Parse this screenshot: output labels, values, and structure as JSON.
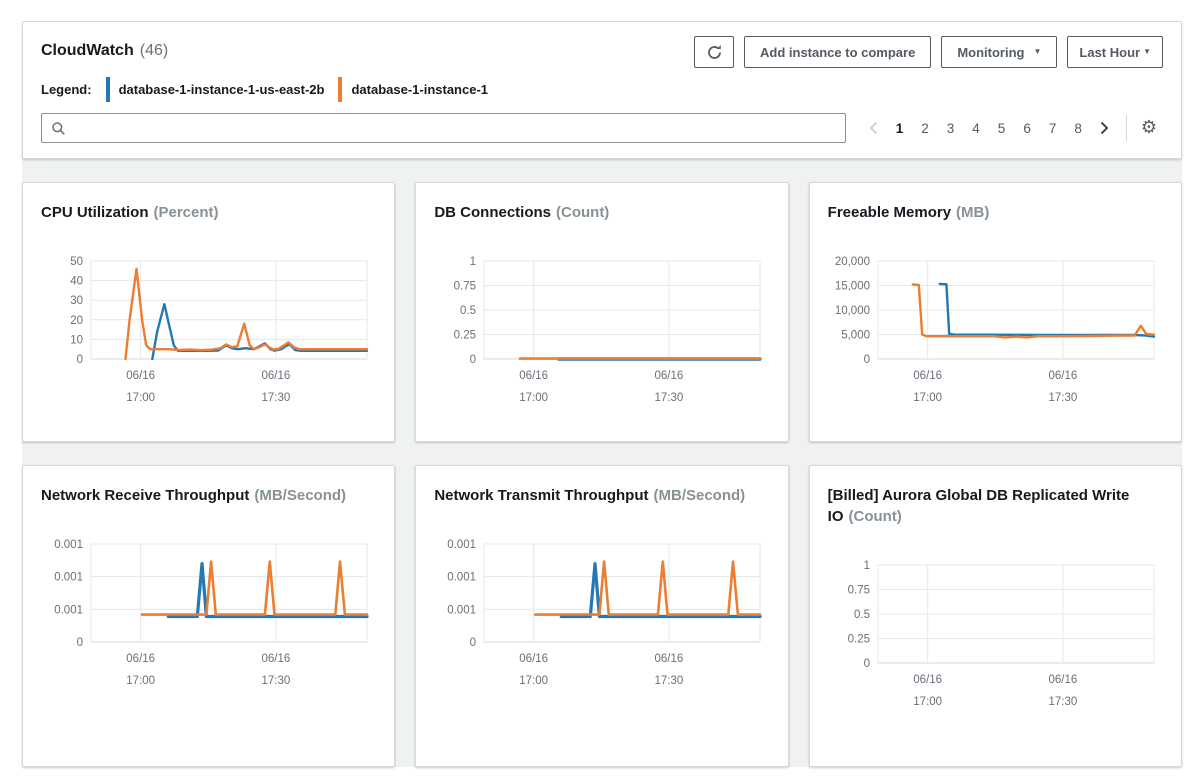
{
  "colors": {
    "blue": "#2478b4",
    "orange": "#ec7d31"
  },
  "header": {
    "title": "CloudWatch",
    "count": "(46)",
    "legend_label": "Legend:",
    "legend_items": [
      {
        "name": "database-1-instance-1-us-east-2b",
        "color_key": "blue"
      },
      {
        "name": "database-1-instance-1",
        "color_key": "orange"
      }
    ],
    "actions": {
      "add_instance": "Add instance to compare",
      "monitoring": "Monitoring",
      "time_range": "Last Hour"
    },
    "search": {
      "value": "",
      "placeholder": ""
    },
    "pagination": {
      "pages": [
        "1",
        "2",
        "3",
        "4",
        "5",
        "6",
        "7",
        "8"
      ],
      "active_page": "1"
    }
  },
  "chart_data": [
    {
      "type": "line",
      "title": "CPU Utilization",
      "unit": "(Percent)",
      "ylabel": "Percent",
      "ylim": [
        0,
        50
      ],
      "grid": true,
      "yticks": [
        {
          "v": 0,
          "label": "0"
        },
        {
          "v": 10,
          "label": "10"
        },
        {
          "v": 20,
          "label": "20"
        },
        {
          "v": 30,
          "label": "30"
        },
        {
          "v": 40,
          "label": "40"
        },
        {
          "v": 50,
          "label": "50"
        }
      ],
      "xticks": [
        {
          "pos": 0.18,
          "lines": [
            "06/16",
            "17:00"
          ]
        },
        {
          "pos": 0.67,
          "lines": [
            "06/16",
            "17:30"
          ]
        }
      ],
      "series": [
        {
          "name": "database-1-instance-1-us-east-2b",
          "color_key": "blue",
          "width": 2.4,
          "points": [
            [
              0.222,
              0
            ],
            [
              0.24,
              14
            ],
            [
              0.266,
              28
            ],
            [
              0.285,
              16
            ],
            [
              0.3,
              7
            ],
            [
              0.315,
              4.2
            ],
            [
              0.36,
              4.2
            ],
            [
              0.42,
              4.2
            ],
            [
              0.46,
              4.3
            ],
            [
              0.49,
              7
            ],
            [
              0.51,
              5.5
            ],
            [
              0.53,
              5
            ],
            [
              0.56,
              5.5
            ],
            [
              0.59,
              5
            ],
            [
              0.61,
              6.5
            ],
            [
              0.63,
              8
            ],
            [
              0.65,
              5
            ],
            [
              0.665,
              4.3
            ],
            [
              0.69,
              5
            ],
            [
              0.705,
              6.5
            ],
            [
              0.72,
              7.5
            ],
            [
              0.74,
              4.6
            ],
            [
              0.76,
              4.2
            ],
            [
              0.82,
              4.2
            ],
            [
              0.9,
              4.2
            ],
            [
              1,
              4.2
            ]
          ]
        },
        {
          "name": "database-1-instance-1",
          "color_key": "orange",
          "width": 2.4,
          "points": [
            [
              0.125,
              0
            ],
            [
              0.14,
              20
            ],
            [
              0.165,
              46
            ],
            [
              0.185,
              20
            ],
            [
              0.2,
              7
            ],
            [
              0.215,
              5
            ],
            [
              0.28,
              5
            ],
            [
              0.32,
              4.6
            ],
            [
              0.36,
              4.8
            ],
            [
              0.4,
              4.5
            ],
            [
              0.44,
              4.8
            ],
            [
              0.47,
              5.5
            ],
            [
              0.49,
              7.5
            ],
            [
              0.51,
              6
            ],
            [
              0.53,
              6.5
            ],
            [
              0.555,
              18
            ],
            [
              0.575,
              7
            ],
            [
              0.59,
              5
            ],
            [
              0.61,
              6
            ],
            [
              0.63,
              7.5
            ],
            [
              0.645,
              6
            ],
            [
              0.66,
              4.8
            ],
            [
              0.68,
              5.2
            ],
            [
              0.7,
              7
            ],
            [
              0.715,
              8.5
            ],
            [
              0.735,
              6
            ],
            [
              0.755,
              5
            ],
            [
              0.8,
              5
            ],
            [
              0.88,
              5
            ],
            [
              1,
              5
            ]
          ]
        }
      ]
    },
    {
      "type": "line",
      "title": "DB Connections",
      "unit": "(Count)",
      "ylabel": "Count",
      "ylim": [
        0,
        1
      ],
      "grid": true,
      "yticks": [
        {
          "v": 0,
          "label": "0"
        },
        {
          "v": 0.25,
          "label": "0.25"
        },
        {
          "v": 0.5,
          "label": "0.5"
        },
        {
          "v": 0.75,
          "label": "0.75"
        },
        {
          "v": 1,
          "label": "1"
        }
      ],
      "xticks": [
        {
          "pos": 0.18,
          "lines": [
            "06/16",
            "17:00"
          ]
        },
        {
          "pos": 0.67,
          "lines": [
            "06/16",
            "17:30"
          ]
        }
      ],
      "series": [
        {
          "name": "database-1-instance-1-us-east-2b",
          "color_key": "blue",
          "width": 3.4,
          "points": [
            [
              0.27,
              0
            ],
            [
              1,
              0
            ]
          ]
        },
        {
          "name": "database-1-instance-1",
          "color_key": "orange",
          "width": 2.6,
          "points": [
            [
              0.13,
              0.004
            ],
            [
              1,
              0.004
            ]
          ]
        }
      ]
    },
    {
      "type": "line",
      "title": "Freeable Memory",
      "unit": "(MB)",
      "ylabel": "MB",
      "ylim": [
        0,
        20000
      ],
      "grid": true,
      "yticks": [
        {
          "v": 0,
          "label": "0"
        },
        {
          "v": 5000,
          "label": "5,000"
        },
        {
          "v": 10000,
          "label": "10,000"
        },
        {
          "v": 15000,
          "label": "15,000"
        },
        {
          "v": 20000,
          "label": "20,000"
        }
      ],
      "xticks": [
        {
          "pos": 0.18,
          "lines": [
            "06/16",
            "17:00"
          ]
        },
        {
          "pos": 0.67,
          "lines": [
            "06/16",
            "17:30"
          ]
        }
      ],
      "series": [
        {
          "name": "database-1-instance-1-us-east-2b",
          "color_key": "blue",
          "width": 2.4,
          "points": [
            [
              0.224,
              15300
            ],
            [
              0.248,
              15250
            ],
            [
              0.258,
              5100
            ],
            [
              0.28,
              4950
            ],
            [
              0.4,
              4950
            ],
            [
              0.6,
              4900
            ],
            [
              0.8,
              4900
            ],
            [
              0.93,
              4900
            ],
            [
              0.97,
              4800
            ],
            [
              1,
              4600
            ]
          ]
        },
        {
          "name": "database-1-instance-1",
          "color_key": "orange",
          "width": 2.4,
          "points": [
            [
              0.126,
              15200
            ],
            [
              0.148,
              15100
            ],
            [
              0.16,
              5000
            ],
            [
              0.175,
              4650
            ],
            [
              0.3,
              4650
            ],
            [
              0.42,
              4650
            ],
            [
              0.46,
              4400
            ],
            [
              0.5,
              4550
            ],
            [
              0.54,
              4400
            ],
            [
              0.58,
              4650
            ],
            [
              0.65,
              4650
            ],
            [
              0.75,
              4700
            ],
            [
              0.85,
              4750
            ],
            [
              0.93,
              4800
            ],
            [
              0.952,
              6800
            ],
            [
              0.972,
              5100
            ],
            [
              1,
              4950
            ]
          ]
        }
      ]
    },
    {
      "type": "line",
      "title": "Network Receive Throughput",
      "unit": "(MB/Second)",
      "ylabel": "MB/Second",
      "ylim": [
        0,
        0.001
      ],
      "grid": true,
      "yticks": [
        {
          "v": 0,
          "label": "0"
        },
        {
          "v": 0.000333,
          "label": "0.001"
        },
        {
          "v": 0.000667,
          "label": "0.001"
        },
        {
          "v": 0.001,
          "label": "0.001"
        }
      ],
      "xticks": [
        {
          "pos": 0.18,
          "lines": [
            "06/16",
            "17:00"
          ]
        },
        {
          "pos": 0.67,
          "lines": [
            "06/16",
            "17:30"
          ]
        }
      ],
      "series": [
        {
          "name": "database-1-instance-1-us-east-2b",
          "color_key": "blue",
          "width": 3.2,
          "points": [
            [
              0.28,
              0.00026
            ],
            [
              0.385,
              0.00026
            ],
            [
              0.402,
              0.0008
            ],
            [
              0.418,
              0.00026
            ],
            [
              0.6,
              0.00026
            ],
            [
              0.8,
              0.00026
            ],
            [
              1,
              0.00026
            ]
          ]
        },
        {
          "name": "database-1-instance-1",
          "color_key": "orange",
          "width": 2.6,
          "points": [
            [
              0.185,
              0.00028
            ],
            [
              0.4,
              0.00028
            ],
            [
              0.418,
              0.00028
            ],
            [
              0.435,
              0.00082
            ],
            [
              0.452,
              0.00028
            ],
            [
              0.63,
              0.00028
            ],
            [
              0.648,
              0.00082
            ],
            [
              0.665,
              0.00028
            ],
            [
              0.885,
              0.00028
            ],
            [
              0.902,
              0.00082
            ],
            [
              0.92,
              0.00028
            ],
            [
              1,
              0.00028
            ]
          ]
        }
      ]
    },
    {
      "type": "line",
      "title": "Network Transmit Throughput",
      "unit": "(MB/Second)",
      "ylabel": "MB/Second",
      "ylim": [
        0,
        0.001
      ],
      "grid": true,
      "yticks": [
        {
          "v": 0,
          "label": "0"
        },
        {
          "v": 0.000333,
          "label": "0.001"
        },
        {
          "v": 0.000667,
          "label": "0.001"
        },
        {
          "v": 0.001,
          "label": "0.001"
        }
      ],
      "xticks": [
        {
          "pos": 0.18,
          "lines": [
            "06/16",
            "17:00"
          ]
        },
        {
          "pos": 0.67,
          "lines": [
            "06/16",
            "17:30"
          ]
        }
      ],
      "series": [
        {
          "name": "database-1-instance-1-us-east-2b",
          "color_key": "blue",
          "width": 3.2,
          "points": [
            [
              0.28,
              0.00026
            ],
            [
              0.385,
              0.00026
            ],
            [
              0.402,
              0.0008
            ],
            [
              0.418,
              0.00026
            ],
            [
              0.6,
              0.00026
            ],
            [
              0.8,
              0.00026
            ],
            [
              1,
              0.00026
            ]
          ]
        },
        {
          "name": "database-1-instance-1",
          "color_key": "orange",
          "width": 2.6,
          "points": [
            [
              0.185,
              0.00028
            ],
            [
              0.4,
              0.00028
            ],
            [
              0.418,
              0.00028
            ],
            [
              0.435,
              0.00082
            ],
            [
              0.452,
              0.00028
            ],
            [
              0.63,
              0.00028
            ],
            [
              0.648,
              0.00082
            ],
            [
              0.665,
              0.00028
            ],
            [
              0.885,
              0.00028
            ],
            [
              0.902,
              0.00082
            ],
            [
              0.92,
              0.00028
            ],
            [
              1,
              0.00028
            ]
          ]
        }
      ]
    },
    {
      "type": "line",
      "title": "[Billed] Aurora Global DB Replicated Write IO",
      "unit": "(Count)",
      "ylabel": "Count",
      "ylim": [
        0,
        1
      ],
      "grid": true,
      "yticks": [
        {
          "v": 0,
          "label": "0"
        },
        {
          "v": 0.25,
          "label": "0.25"
        },
        {
          "v": 0.5,
          "label": "0.5"
        },
        {
          "v": 0.75,
          "label": "0.75"
        },
        {
          "v": 1,
          "label": "1"
        }
      ],
      "xticks": [
        {
          "pos": 0.18,
          "lines": [
            "06/16",
            "17:00"
          ]
        },
        {
          "pos": 0.67,
          "lines": [
            "06/16",
            "17:30"
          ]
        }
      ],
      "series": []
    }
  ]
}
